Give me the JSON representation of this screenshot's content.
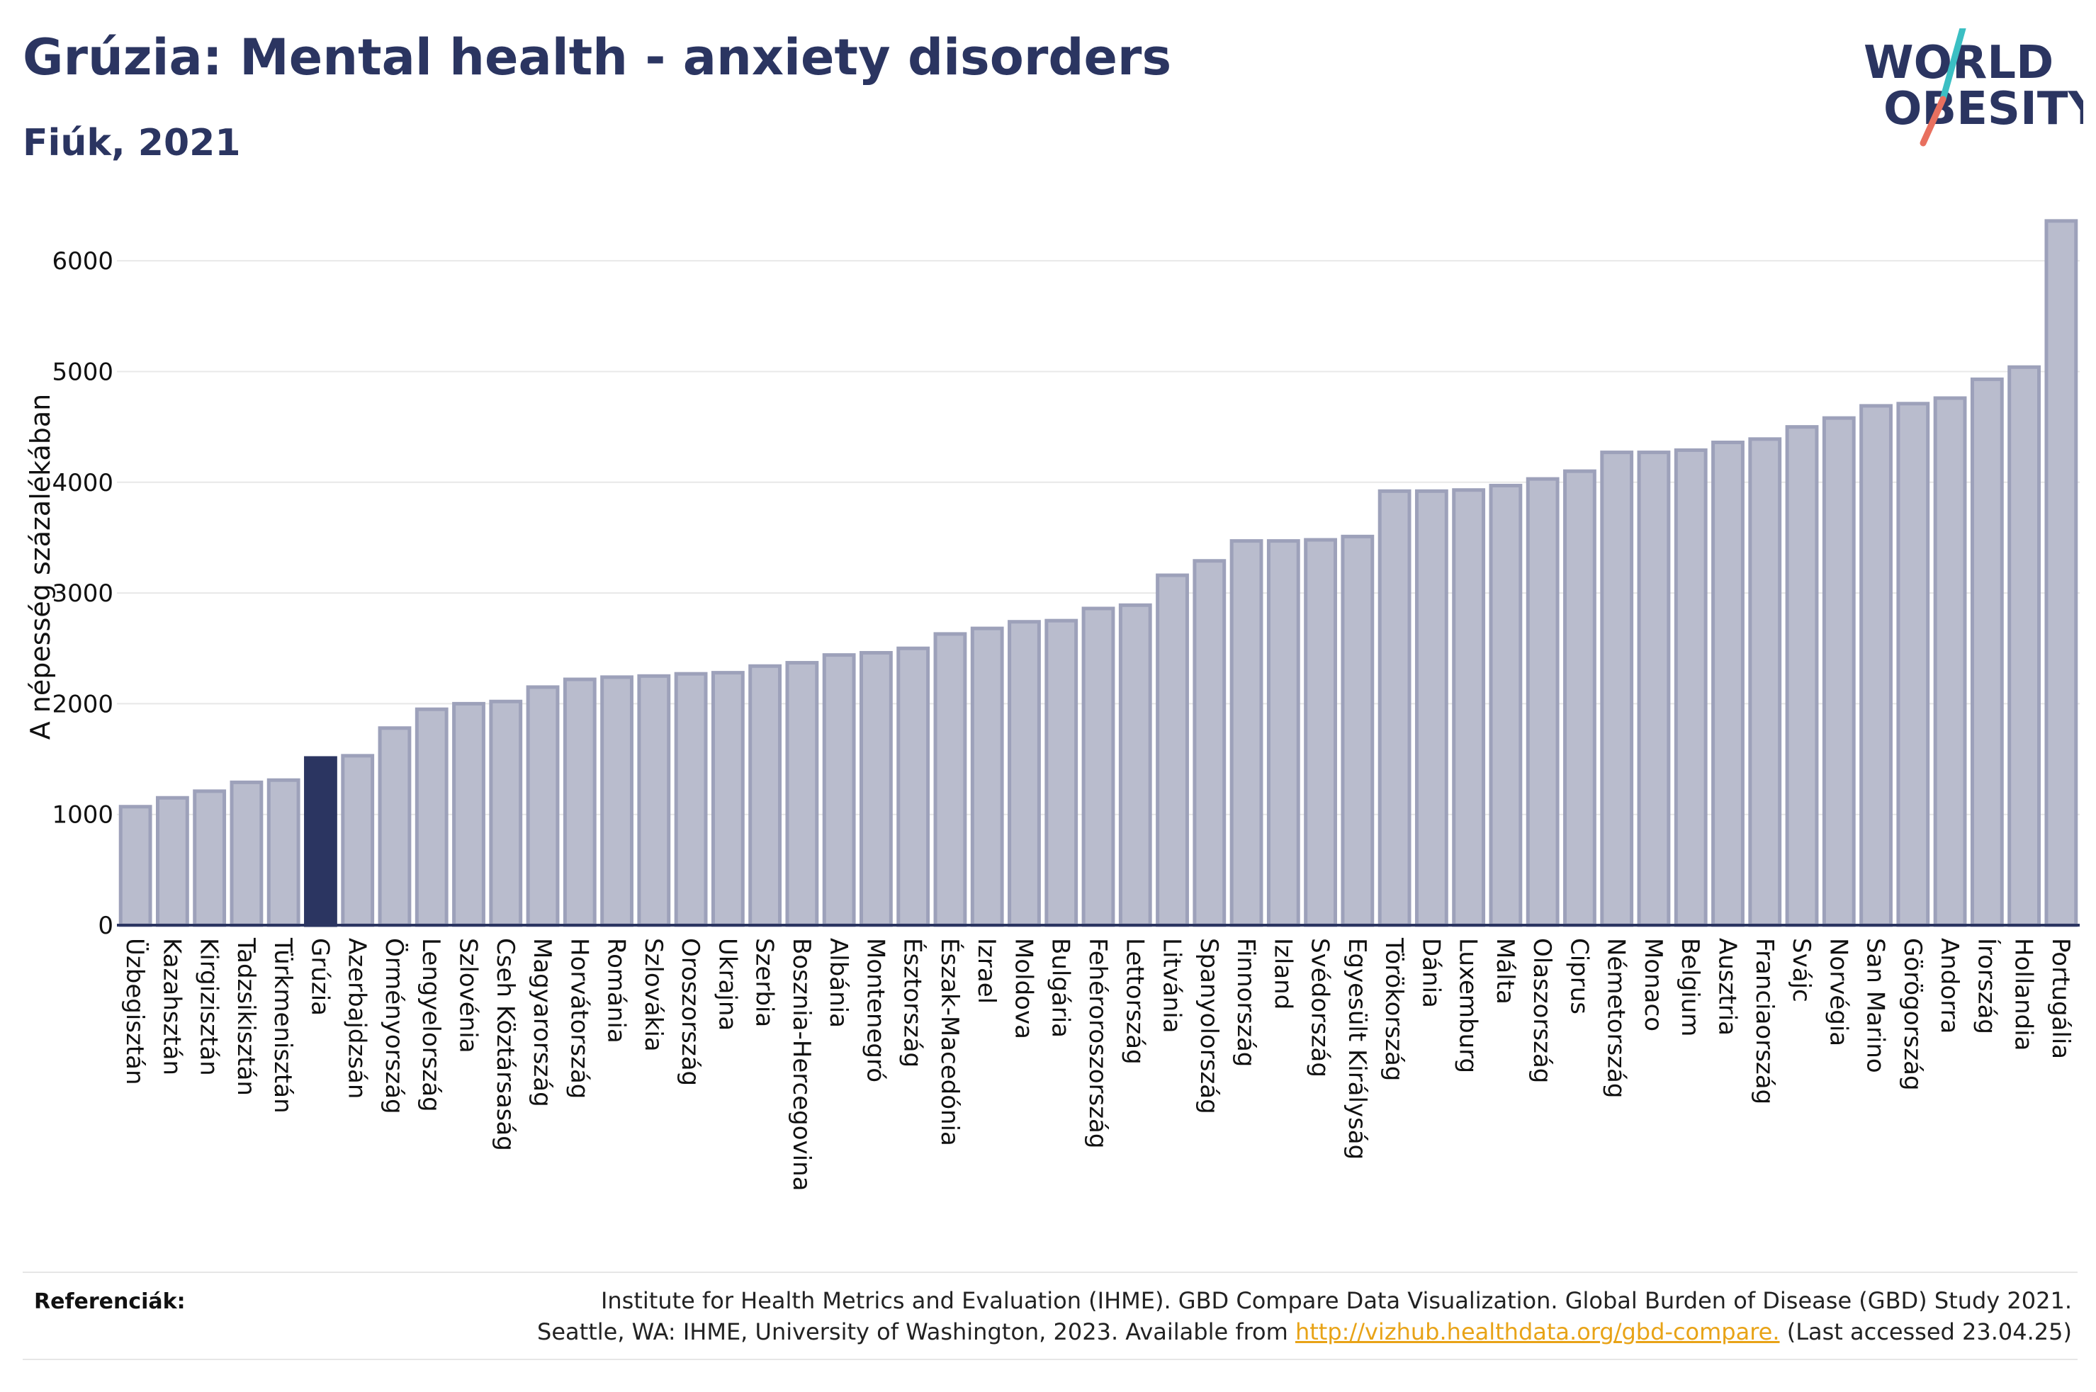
{
  "header": {
    "title": "Grúzia: Mental health - anxiety disorders",
    "subtitle": "Fiúk, 2021"
  },
  "logo": {
    "line1": "WORLD",
    "line2": "OBESITY"
  },
  "colors": {
    "bar": "#b9bccd",
    "bar_stroke": "#9da1ba",
    "highlight": "#2b3561",
    "text": "#2b3561",
    "grid": "#e8e8e8",
    "logo_teal": "#3bbfc3",
    "logo_red": "#e8705f"
  },
  "chart_data": {
    "type": "bar",
    "ylabel": "A népesség százalékában",
    "ylim": [
      0,
      6500
    ],
    "yticks": [
      0,
      1000,
      2000,
      3000,
      4000,
      5000,
      6000
    ],
    "grid": true,
    "highlight": "Grúzia",
    "categories": [
      "Üzbegisztán",
      "Kazahsztán",
      "Kirgizisztán",
      "Tadzsikisztán",
      "Türkmenisztán",
      "Grúzia",
      "Azerbajdzsán",
      "Örményország",
      "Lengyelország",
      "Szlovénia",
      "Cseh Köztársaság",
      "Magyarország",
      "Horvátország",
      "Románia",
      "Szlovákia",
      "Oroszország",
      "Ukrajna",
      "Szerbia",
      "Bosznia-Hercegovina",
      "Albánia",
      "Montenegró",
      "Észtország",
      "Észak-Macedónia",
      "Izrael",
      "Moldova",
      "Bulgária",
      "Fehéroroszország",
      "Lettország",
      "Litvánia",
      "Spanyolország",
      "Finnország",
      "Izland",
      "Svédország",
      "Egyesült Királyság",
      "Törökország",
      "Dánia",
      "Luxemburg",
      "Málta",
      "Olaszország",
      "Ciprus",
      "Németország",
      "Monaco",
      "Belgium",
      "Ausztria",
      "Franciaország",
      "Svájc",
      "Norvégia",
      "San Marino",
      "Görögország",
      "Andorra",
      "Írország",
      "Hollandia",
      "Portugália"
    ],
    "values": [
      1070,
      1150,
      1210,
      1290,
      1310,
      1510,
      1530,
      1780,
      1950,
      2000,
      2020,
      2150,
      2220,
      2240,
      2250,
      2270,
      2280,
      2340,
      2370,
      2440,
      2460,
      2500,
      2630,
      2680,
      2740,
      2750,
      2860,
      2890,
      3160,
      3290,
      3470,
      3470,
      3480,
      3510,
      3920,
      3920,
      3930,
      3970,
      4030,
      4100,
      4270,
      4270,
      4290,
      4360,
      4390,
      4500,
      4580,
      4690,
      4710,
      4760,
      4930,
      5040,
      6360
    ]
  },
  "footer": {
    "label": "Referenciák:",
    "line1": "Institute for Health Metrics and Evaluation (IHME). GBD Compare Data Visualization. Global Burden of Disease (GBD) Study 2021.",
    "line2_prefix": "Seattle, WA: IHME, University of Washington, 2023. Available from ",
    "link": "http://vizhub.healthdata.org/gbd-compare.",
    "line2_suffix": " (Last accessed 23.04.25)"
  }
}
